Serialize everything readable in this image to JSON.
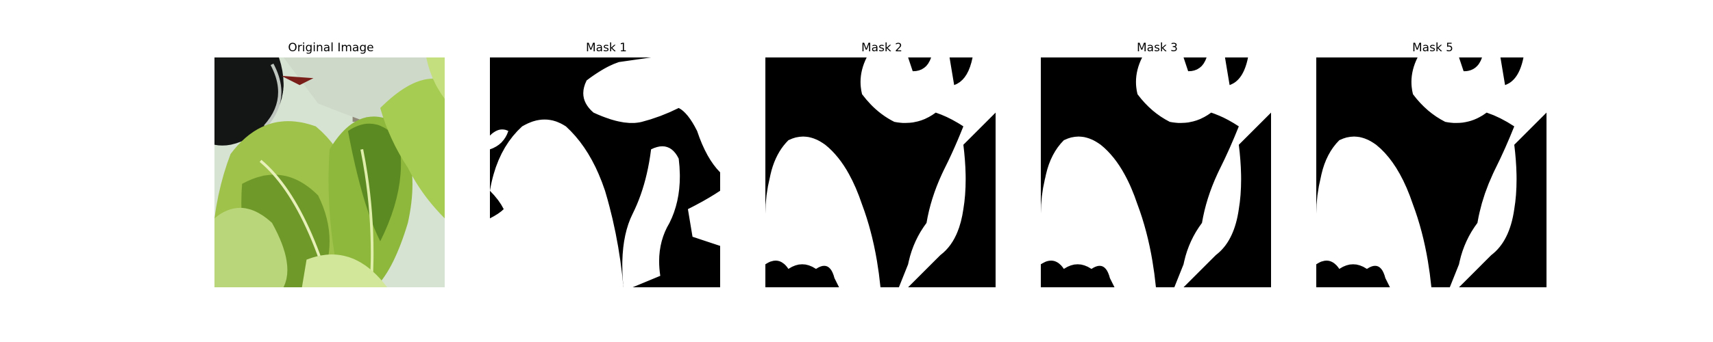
{
  "figure": {
    "panels": [
      {
        "title": "Original Image",
        "kind": "photo",
        "content": "close-up photo of green leafy vegetable (bok choy) leaves with a black container rim at top-left"
      },
      {
        "title": "Mask 1",
        "kind": "binary-mask"
      },
      {
        "title": "Mask 2",
        "kind": "binary-mask"
      },
      {
        "title": "Mask 3",
        "kind": "binary-mask"
      },
      {
        "title": "Mask 5",
        "kind": "binary-mask"
      }
    ],
    "colors": {
      "mask_foreground": "#ffffff",
      "mask_background": "#000000",
      "leaf_light": "#c8e08a",
      "leaf_dark": "#4a6e1e"
    }
  }
}
